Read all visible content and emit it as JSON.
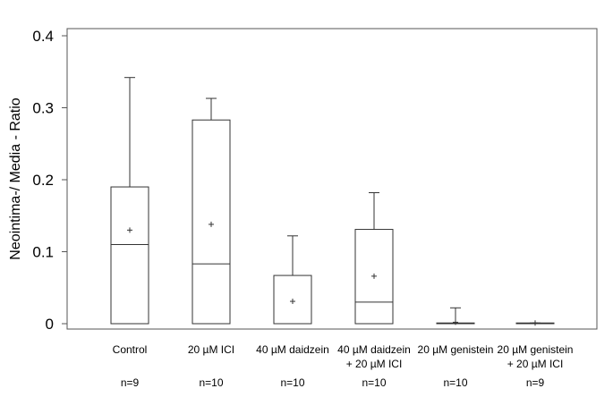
{
  "chart_data": {
    "type": "boxplot",
    "ylabel": "Neointima-/ Media - Ratio",
    "ylim": [
      0,
      0.4
    ],
    "yticks": [
      "0",
      "0.1",
      "0.2",
      "0.3",
      "0.4"
    ],
    "grid": false,
    "categories": [
      {
        "label1": "Control",
        "label2": "",
        "n": "n=9"
      },
      {
        "label1": "20 µM ICI",
        "label2": "",
        "n": "n=10"
      },
      {
        "label1": "40 µM daidzein",
        "label2": "",
        "n": "n=10"
      },
      {
        "label1": "40 µM daidzein",
        "label2": "+ 20 µM ICI",
        "n": "n=10"
      },
      {
        "label1": "20 µM genistein",
        "label2": "",
        "n": "n=10"
      },
      {
        "label1": "20 µM genistein",
        "label2": "+ 20 µM ICI",
        "n": "n=9"
      }
    ],
    "boxes": [
      {
        "min": 0,
        "q1": 0,
        "median": 0.11,
        "q3": 0.19,
        "max": 0.342,
        "mean": 0.13
      },
      {
        "min": 0,
        "q1": 0,
        "median": 0.083,
        "q3": 0.283,
        "max": 0.313,
        "mean": 0.138
      },
      {
        "min": 0,
        "q1": 0,
        "median": 0,
        "q3": 0.067,
        "max": 0.122,
        "mean": 0.031
      },
      {
        "min": 0,
        "q1": 0,
        "median": 0.03,
        "q3": 0.131,
        "max": 0.182,
        "mean": 0.066
      },
      {
        "min": 0,
        "q1": 0,
        "median": 0,
        "q3": 0.001,
        "max": 0.022,
        "mean": 0.002
      },
      {
        "min": 0,
        "q1": 0,
        "median": 0,
        "q3": 0.001,
        "max": 0.001,
        "mean": 0.001
      }
    ]
  }
}
